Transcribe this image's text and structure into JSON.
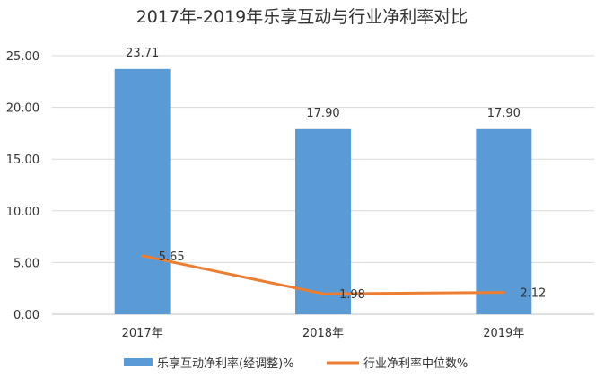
{
  "chart_data": {
    "type": "bar",
    "title": "2017年-2019年乐享互动与行业净利率对比",
    "categories": [
      "2017年",
      "2018年",
      "2019年"
    ],
    "ylim": [
      0,
      25
    ],
    "yticks": [
      "0.00",
      "5.00",
      "10.00",
      "15.00",
      "20.00",
      "25.00"
    ],
    "grid": true,
    "legend_position": "bottom",
    "series": [
      {
        "name": "乐享互动净利率(经调整)%",
        "type": "bar",
        "color": "#5B9BD5",
        "values": [
          23.71,
          17.9,
          17.9
        ],
        "labels": [
          "23.71",
          "17.90",
          "17.90"
        ]
      },
      {
        "name": "行业净利率中位数%",
        "type": "line",
        "color": "#ED7D31",
        "values": [
          5.65,
          1.98,
          2.12
        ],
        "labels": [
          "5.65",
          "1.98",
          "2.12"
        ]
      }
    ]
  }
}
